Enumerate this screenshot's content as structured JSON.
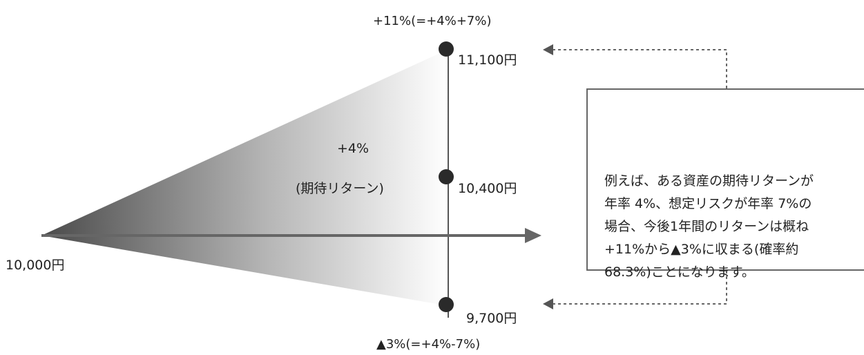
{
  "labels": {
    "start_value": "10,000円",
    "high_value": "11,100円",
    "mid_value": "10,400円",
    "low_value": "9,700円",
    "high_pct": "+11%(=+4%+7%)",
    "low_pct": "▲3%(=+4%-7%)",
    "expected_return_pct": "+4%",
    "expected_return_caption": "(期待リターン)"
  },
  "callout": {
    "lines": [
      "例えば、ある資産の期待リターンが",
      "年率 4%、想定リスクが年率 7%の",
      "場合、今後1年間のリターンは概ね",
      "+11%から▲3%に収まる(確率約",
      "68.3%)ことになります。"
    ]
  },
  "colors": {
    "cone_dark": "#555555",
    "cone_light": "#ffffff",
    "arrow": "#666666",
    "dot": "#2a2a2a",
    "dashed": "#666666",
    "text": "#222222"
  }
}
